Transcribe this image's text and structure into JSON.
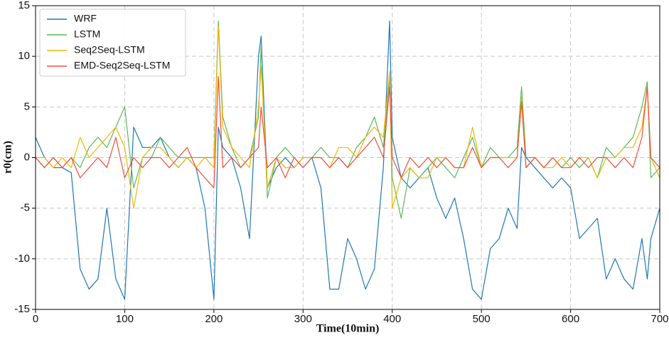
{
  "chart_data": {
    "type": "line",
    "xlabel": "Time(10min)",
    "ylabel": "r0(cm)",
    "xlim": [
      0,
      700
    ],
    "xticks": [
      0,
      100,
      200,
      300,
      400,
      500,
      600,
      700
    ],
    "ylim": [
      -15,
      15
    ],
    "yticks": [
      -15,
      -10,
      -5,
      0,
      5,
      10,
      15
    ],
    "grid": true,
    "legend": "upper left",
    "x": [
      0,
      10,
      20,
      30,
      40,
      50,
      60,
      70,
      80,
      90,
      100,
      110,
      120,
      130,
      140,
      150,
      160,
      170,
      180,
      190,
      200,
      205,
      210,
      220,
      230,
      240,
      250,
      253,
      260,
      270,
      280,
      290,
      300,
      310,
      320,
      330,
      340,
      350,
      360,
      370,
      380,
      390,
      397,
      400,
      410,
      420,
      430,
      440,
      450,
      460,
      470,
      480,
      490,
      500,
      510,
      520,
      530,
      540,
      545,
      550,
      560,
      570,
      580,
      590,
      600,
      610,
      620,
      630,
      640,
      650,
      660,
      670,
      680,
      686,
      690,
      700
    ],
    "series": [
      {
        "name": "WRF",
        "color": "#1f77b4",
        "values": [
          2,
          0,
          -1,
          -1,
          -1.5,
          -11,
          -13,
          -12,
          -5,
          -12,
          -14,
          3,
          1,
          1,
          2,
          0,
          -1,
          0,
          -1,
          -5,
          -14,
          3,
          1,
          0,
          -3,
          -8,
          10,
          12,
          -3,
          -1,
          0,
          -1,
          0,
          0,
          -3,
          -13,
          -13,
          -8,
          -10,
          -13,
          -11,
          -1,
          13.5,
          2,
          -2,
          -3,
          -2,
          -1,
          -4,
          -6,
          -4,
          -8,
          -13,
          -14,
          -9,
          -8,
          -5,
          -7,
          1,
          0,
          -1,
          -2,
          -3,
          -2,
          -3,
          -8,
          -7,
          -6,
          -12,
          -10,
          -12,
          -13,
          -8,
          -12,
          -8,
          -5
        ]
      },
      {
        "name": "LSTM",
        "color": "#5cb85c",
        "values": [
          0,
          -1,
          0,
          -1,
          0,
          -1,
          1,
          2,
          1,
          3,
          5,
          -3,
          0,
          0,
          2,
          1,
          0,
          0,
          0,
          0,
          0,
          13.5,
          4,
          1,
          -1,
          0,
          4,
          11,
          -4,
          0,
          1,
          0,
          -1,
          0,
          1,
          0,
          0,
          -1,
          1,
          2,
          4,
          1,
          8,
          -2,
          -6,
          -1,
          -2,
          -1,
          0,
          -1,
          -2,
          0,
          2,
          -1,
          1,
          0,
          0,
          1,
          7,
          0,
          0,
          -1,
          0,
          -1,
          0,
          -1,
          0,
          -2,
          1,
          0,
          1,
          2,
          5,
          7.5,
          -2,
          -1
        ]
      },
      {
        "name": "Seq2Seq-LSTM",
        "color": "#f2b705",
        "values": [
          0,
          0,
          -1,
          0,
          -1,
          2,
          0,
          1,
          2,
          3,
          1,
          -5,
          0,
          1,
          1,
          0,
          -1,
          0,
          -1,
          0,
          -1,
          13,
          3,
          1,
          0,
          -1,
          5,
          9,
          -3,
          0,
          -1,
          -1,
          0,
          0,
          0,
          -1,
          1,
          1,
          0,
          2,
          3,
          2,
          8.5,
          -5,
          -2,
          -1,
          -2,
          -2,
          0,
          0,
          -1,
          -1,
          3,
          -1,
          0,
          0,
          0,
          0,
          6,
          -1,
          0,
          -1,
          -1,
          0,
          -1,
          0,
          0,
          -2,
          0,
          0,
          1,
          1,
          3,
          7,
          0,
          -2
        ]
      },
      {
        "name": "EMD-Seq2Seq-LSTM",
        "color": "#f04e3a",
        "values": [
          0,
          -1,
          0,
          -1,
          0,
          -2,
          -1,
          0,
          -1,
          2,
          -2,
          0,
          -1,
          0,
          0,
          -1,
          0,
          1,
          -1,
          -2,
          -3,
          8,
          -1,
          0,
          -1,
          0,
          1,
          5,
          -1,
          0,
          -2,
          0,
          -1,
          0,
          0,
          -1,
          0,
          -1,
          0,
          1,
          2,
          0,
          7,
          0,
          -2,
          0,
          -1,
          0,
          -1,
          0,
          -1,
          -1,
          1,
          -1,
          0,
          0,
          -1,
          0,
          5.5,
          -1,
          0,
          -1,
          0,
          -1,
          -1,
          0,
          -1,
          0,
          0,
          -1,
          0,
          -1,
          2,
          7,
          0,
          -1
        ]
      }
    ]
  }
}
